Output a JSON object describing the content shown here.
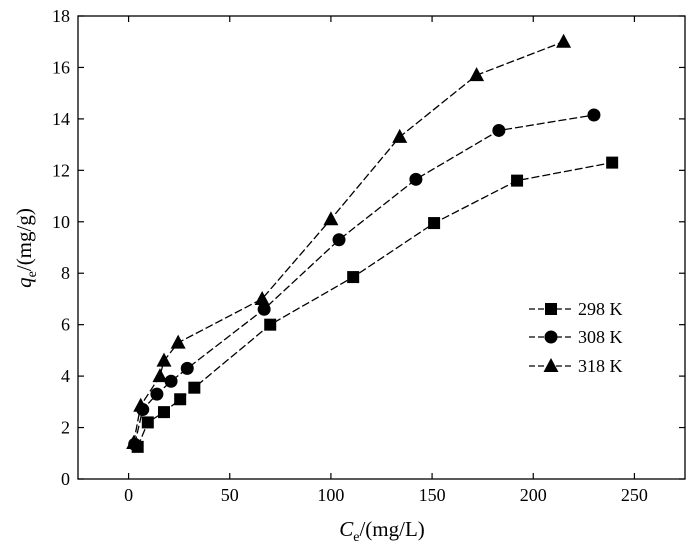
{
  "chart_data": {
    "type": "line",
    "title": "",
    "xlabel_main": "C",
    "xlabel_sub": "e",
    "xlabel_unit": "/(mg/L)",
    "ylabel_main": "q",
    "ylabel_sub": "e",
    "ylabel_unit": "/(mg/g)",
    "xlim": [
      -25,
      275
    ],
    "ylim": [
      0,
      18
    ],
    "xticks": [
      0,
      50,
      100,
      150,
      200,
      250
    ],
    "yticks": [
      0,
      2,
      4,
      6,
      8,
      10,
      12,
      14,
      16,
      18
    ],
    "grid": false,
    "legend_position": "right-middle",
    "series": [
      {
        "name": "298 K",
        "marker": "square",
        "x": [
          4.5,
          9.5,
          17.5,
          25.5,
          32.5,
          70,
          111,
          151,
          192,
          239
        ],
        "y": [
          1.25,
          2.2,
          2.6,
          3.1,
          3.55,
          6.0,
          7.85,
          9.95,
          11.6,
          12.3
        ]
      },
      {
        "name": "308 K",
        "marker": "circle",
        "x": [
          3,
          7,
          14,
          21,
          29,
          67,
          104,
          142,
          183,
          230
        ],
        "y": [
          1.35,
          2.7,
          3.3,
          3.8,
          4.3,
          6.6,
          9.3,
          11.65,
          13.55,
          14.15
        ]
      },
      {
        "name": "318 K",
        "marker": "triangle",
        "x": [
          2.5,
          6,
          15.5,
          17.5,
          24.5,
          66,
          100,
          134,
          172,
          215
        ],
        "y": [
          1.4,
          2.85,
          4.0,
          4.6,
          5.3,
          7.0,
          10.1,
          13.3,
          15.7,
          17.0
        ]
      }
    ]
  }
}
